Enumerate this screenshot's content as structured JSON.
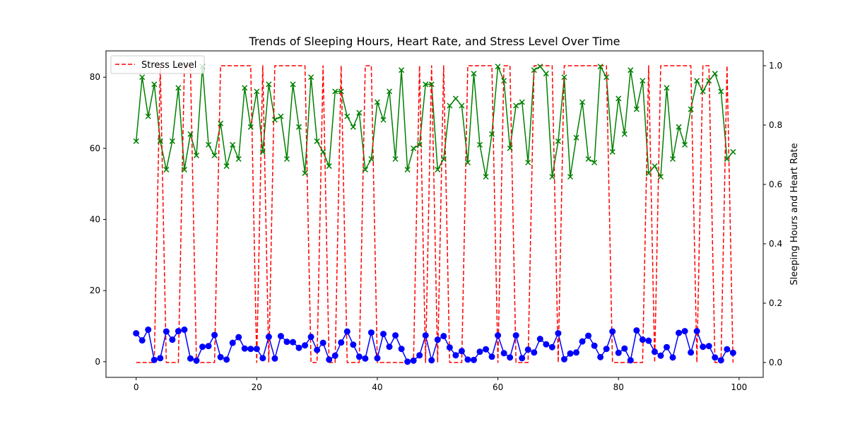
{
  "chart_data": {
    "type": "line",
    "title": "Trends of Sleeping Hours, Heart Rate, and Stress Level Over Time",
    "xlabel": "",
    "ylabel_left": "",
    "ylabel_right": "Sleeping Hours and Heart Rate",
    "xlim": [
      -5,
      104
    ],
    "ylim_left": [
      -4.4,
      87.4
    ],
    "ylim_right": [
      -0.05,
      1.05
    ],
    "x_ticks": [
      0,
      20,
      40,
      60,
      80,
      100
    ],
    "y_ticks_left": [
      0,
      20,
      40,
      60,
      80
    ],
    "y_ticks_right": [
      0.0,
      0.2,
      0.4,
      0.6,
      0.8,
      1.0
    ],
    "grid": false,
    "legend": {
      "placement": "upper-left",
      "entries": [
        "Stress Level"
      ]
    },
    "x": [
      0,
      1,
      2,
      3,
      4,
      5,
      6,
      7,
      8,
      9,
      10,
      11,
      12,
      13,
      14,
      15,
      16,
      17,
      18,
      19,
      20,
      21,
      22,
      23,
      24,
      25,
      26,
      27,
      28,
      29,
      30,
      31,
      32,
      33,
      34,
      35,
      36,
      37,
      38,
      39,
      40,
      41,
      42,
      43,
      44,
      45,
      46,
      47,
      48,
      49,
      50,
      51,
      52,
      53,
      54,
      55,
      56,
      57,
      58,
      59,
      60,
      61,
      62,
      63,
      64,
      65,
      66,
      67,
      68,
      69,
      70,
      71,
      72,
      73,
      74,
      75,
      76,
      77,
      78,
      79,
      80,
      81,
      82,
      83,
      84,
      85,
      86,
      87,
      88,
      89,
      90,
      91,
      92,
      93,
      94,
      95,
      96,
      97,
      98,
      99
    ],
    "series": [
      {
        "name": "",
        "axis": "left",
        "color": "#0000ff",
        "marker": "circle",
        "linestyle": "solid",
        "values": [
          8.0,
          6.0,
          9.0,
          0.5,
          1.0,
          8.5,
          6.2,
          8.6,
          9.0,
          0.9,
          0.3,
          4.2,
          4.4,
          7.5,
          1.3,
          0.6,
          5.3,
          6.9,
          3.7,
          3.6,
          3.6,
          1.0,
          7.0,
          0.9,
          7.2,
          5.6,
          5.5,
          3.9,
          4.6,
          7.0,
          3.3,
          5.3,
          0.6,
          1.7,
          5.4,
          8.5,
          4.8,
          1.4,
          0.9,
          8.2,
          1.0,
          7.8,
          4.2,
          7.4,
          3.6,
          0.0,
          0.3,
          1.8,
          7.4,
          0.4,
          6.2,
          7.2,
          4.0,
          1.8,
          3.0,
          0.6,
          0.5,
          2.8,
          3.5,
          1.4,
          7.4,
          2.4,
          1.2,
          7.4,
          1.0,
          3.4,
          2.6,
          6.4,
          4.9,
          4.1,
          8.0,
          0.7,
          2.3,
          2.6,
          5.7,
          7.3,
          4.5,
          1.3,
          3.6,
          8.5,
          2.5,
          3.7,
          0.4,
          8.8,
          6.2,
          5.9,
          2.8,
          1.7,
          4.1,
          1.2,
          8.1,
          8.6,
          2.6,
          8.6,
          4.2,
          4.4,
          1.2,
          0.4,
          3.5,
          2.5
        ]
      },
      {
        "name": "",
        "axis": "left",
        "color": "#008000",
        "marker": "x",
        "linestyle": "solid",
        "values": [
          62,
          80,
          69,
          78,
          62,
          54,
          62,
          77,
          54,
          64,
          58,
          83,
          61,
          58,
          67,
          55,
          61,
          57,
          77,
          66,
          76,
          59,
          78,
          68,
          69,
          57,
          78,
          66,
          53,
          80,
          62,
          59,
          55,
          76,
          76,
          69,
          66,
          70,
          54,
          57,
          73,
          68,
          76,
          57,
          82,
          54,
          60,
          61,
          78,
          78,
          54,
          57,
          72,
          74,
          72,
          56,
          81,
          61,
          52,
          64,
          83,
          79,
          60,
          72,
          73,
          56,
          82,
          83,
          81,
          52,
          62,
          80,
          52,
          63,
          73,
          57,
          56,
          83,
          80,
          59,
          74,
          64,
          82,
          71,
          79,
          53,
          55,
          52,
          77,
          57,
          66,
          61,
          71,
          79,
          76,
          79,
          81,
          76,
          57,
          59
        ]
      },
      {
        "name": "Stress Level",
        "axis": "right",
        "color": "#ff0000",
        "marker": "none",
        "linestyle": "dashed",
        "values": [
          0,
          0,
          0,
          0,
          1,
          0,
          0,
          0,
          1,
          1,
          0,
          0,
          0,
          0,
          1,
          1,
          1,
          1,
          1,
          1,
          0,
          1,
          0,
          1,
          1,
          1,
          1,
          1,
          1,
          0,
          0,
          1,
          0,
          0,
          1,
          0,
          0,
          0,
          1,
          1,
          0,
          0,
          0,
          0,
          0,
          0,
          0,
          1,
          0,
          1,
          0,
          1,
          0,
          0,
          0,
          1,
          1,
          1,
          1,
          1,
          0,
          1,
          1,
          0,
          0,
          0,
          1,
          1,
          1,
          1,
          0,
          1,
          1,
          1,
          1,
          1,
          1,
          1,
          1,
          0,
          0,
          0,
          0,
          0,
          0,
          1,
          0,
          1,
          1,
          1,
          1,
          1,
          1,
          0,
          1,
          1,
          0,
          0,
          1,
          0
        ]
      }
    ]
  }
}
